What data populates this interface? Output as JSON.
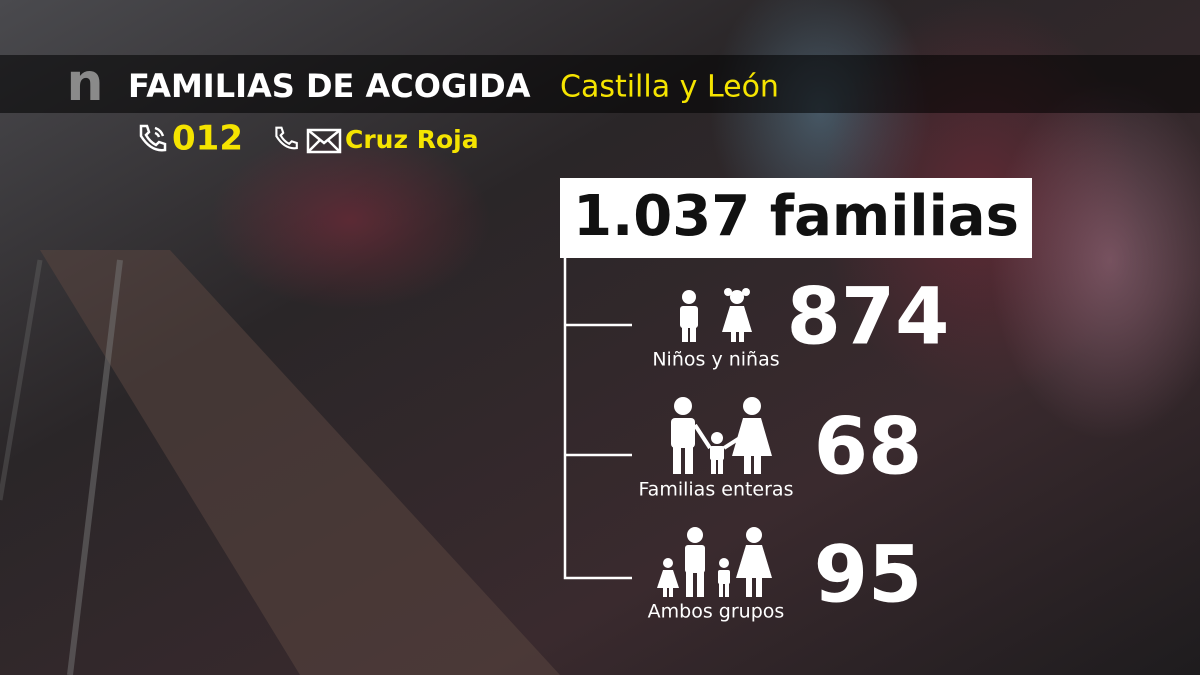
{
  "header": {
    "logo": "n",
    "title": "FAMILIAS DE ACOGIDA",
    "region": "Castilla y León"
  },
  "contacts": {
    "phone": "012",
    "organization": "Cruz Roja"
  },
  "total": {
    "number": "1.037",
    "unit": "familias"
  },
  "groups": [
    {
      "label": "Niños y niñas",
      "value": 874
    },
    {
      "label": "Familias enteras",
      "value": 68
    },
    {
      "label": "Ambos grupos",
      "value": 95
    }
  ]
}
